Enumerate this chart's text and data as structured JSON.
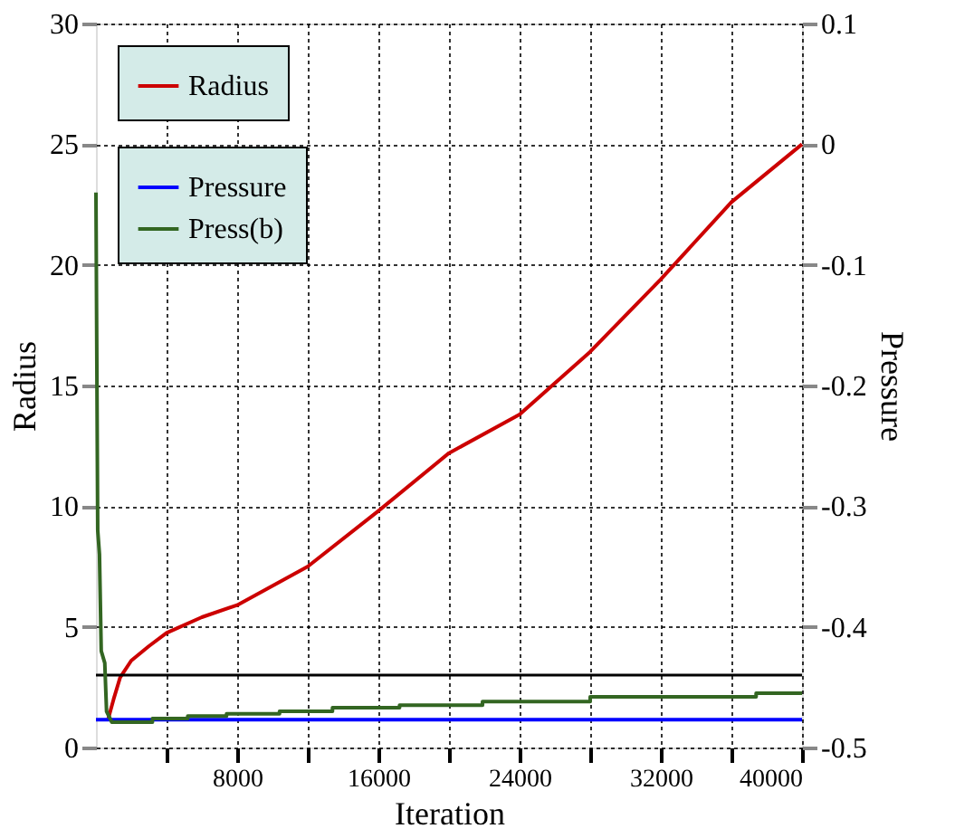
{
  "chart_data": {
    "type": "line",
    "xlabel": "Iteration",
    "ylabel": "Radius",
    "y2label": "Pressure",
    "xlim": [
      0,
      40000
    ],
    "xticks": [
      {
        "value": 4000,
        "label": null
      },
      8000,
      {
        "value": 12000,
        "label": null
      },
      16000,
      {
        "value": 20000,
        "label": null
      },
      24000,
      {
        "value": 28000,
        "label": null
      },
      32000,
      {
        "value": 36000,
        "label": null
      },
      40000
    ],
    "ylim": [
      0,
      30
    ],
    "yticks": [
      0,
      5,
      10,
      15,
      20,
      25,
      30
    ],
    "y2lim": [
      -0.5,
      0.1
    ],
    "y2ticks": [
      -0.5,
      -0.4,
      -0.3,
      -0.2,
      -0.1,
      0,
      0.1
    ],
    "grid": true,
    "legend": "top left",
    "line_style": "solid",
    "marker": "none",
    "ref_lines": [
      {
        "axis": "y",
        "value": 3,
        "color": "#000000"
      }
    ],
    "series": [
      {
        "name": "Radius",
        "color": "#cc0000",
        "x": [
          700,
          1000,
          1370,
          2000,
          3000,
          4000,
          6000,
          8000,
          12000,
          16000,
          20000,
          24000,
          28000,
          32000,
          36000,
          40000
        ],
        "values": [
          1.2,
          2.0,
          2.9,
          3.6,
          4.2,
          4.75,
          5.4,
          5.9,
          7.5,
          9.8,
          12.2,
          13.8,
          16.4,
          19.4,
          22.6,
          25
        ]
      },
      {
        "name": "Pressure",
        "color": "#0000ff",
        "axis": "y2",
        "x": [
          0,
          40000
        ],
        "values": [
          -0.477,
          -0.477
        ]
      },
      {
        "name": "Press(b)",
        "color": "#336622",
        "axis": "y2",
        "x": [
          0,
          100,
          200,
          300,
          500,
          600,
          900,
          3200,
          3200,
          5200,
          5200,
          7400,
          7400,
          10400,
          10400,
          13400,
          13400,
          17200,
          17200,
          21900,
          21900,
          28000,
          28000,
          37400,
          37400,
          40000
        ],
        "values": [
          -0.04,
          -0.32,
          -0.34,
          -0.42,
          -0.43,
          -0.47,
          -0.479,
          -0.479,
          -0.476,
          -0.476,
          -0.474,
          -0.474,
          -0.472,
          -0.472,
          -0.47,
          -0.47,
          -0.467,
          -0.467,
          -0.465,
          -0.465,
          -0.462,
          -0.462,
          -0.458,
          -0.458,
          -0.455,
          -0.455
        ]
      }
    ]
  }
}
